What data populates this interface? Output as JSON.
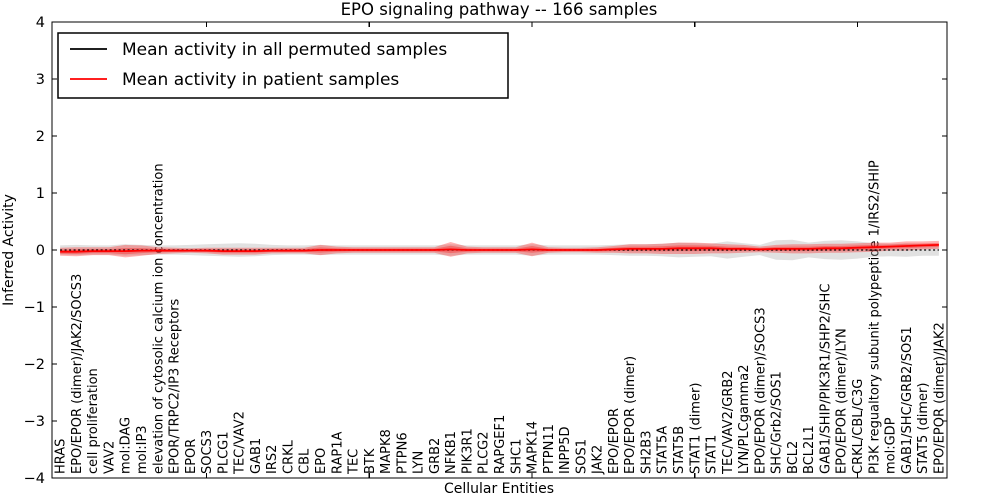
{
  "title": "EPO signaling pathway -- 166 samples",
  "axes": {
    "xlabel": "Cellular Entities",
    "ylabel": "Inferred Activity",
    "ylim": [
      -4,
      4
    ],
    "ytick_values": [
      4,
      3,
      2,
      1,
      0,
      -1,
      -2,
      -3,
      -4
    ],
    "ytick_labels": [
      "4",
      "3",
      "2",
      "1",
      "0",
      "−1",
      "−2",
      "−3",
      "−4"
    ],
    "xtick_major_indices": [
      9,
      19,
      29,
      39,
      49
    ]
  },
  "legend": {
    "items": [
      {
        "label": "Mean activity in all permuted samples",
        "color": "#000000"
      },
      {
        "label": "Mean activity in patient samples",
        "color": "#ff0000"
      }
    ]
  },
  "colors": {
    "background": "#ffffff",
    "spine": "#000000",
    "permuted_line": "#000000",
    "patient_line": "#ff0000",
    "permuted_band": "#aaaaaa",
    "patient_band": "#ff0000"
  },
  "chart_data": {
    "type": "line",
    "title": "EPO signaling pathway -- 166 samples",
    "xlabel": "Cellular Entities",
    "ylabel": "Inferred Activity",
    "ylim": [
      -4,
      4
    ],
    "grid": false,
    "legend_position": "upper left",
    "categories": [
      "HRAS",
      "EPO/EPOR (dimer)/JAK2/SOCS3",
      "cell proliferation",
      "VAV2",
      "mol:DAG",
      "mol:IP3",
      "elevation of cytosolic calcium ion concentration",
      "EPOR/TRPC2/IP3 Receptors",
      "EPOR",
      "SOCS3",
      "PLCG1",
      "TEC/VAV2",
      "GAB1",
      "IRS2",
      "CRKL",
      "CBL",
      "EPO",
      "RAP1A",
      "TEC",
      "BTK",
      "MAPK8",
      "PTPN6",
      "LYN",
      "GRB2",
      "NFKB1",
      "PIK3R1",
      "PLCG2",
      "RAPGEF1",
      "SHC1",
      "MAPK14",
      "PTPN11",
      "INPP5D",
      "SOS1",
      "JAK2",
      "EPO/EPOR",
      "EPO/EPOR (dimer)",
      "SH2B3",
      "STAT5A",
      "STAT5B",
      "STAT1 (dimer)",
      "STAT1",
      "TEC/VAV2/GRB2",
      "LYN/PLCgamma2",
      "EPO/EPOR (dimer)/SOCS3",
      "SHC/Grb2/SOS1",
      "BCL2",
      "BCL2L1",
      "GAB1/SHIP/PIK3R1/SHP2/SHC",
      "EPO/EPOR (dimer)/LYN",
      "CRKL/CBL/C3G",
      "PI3K regualtory subunit polypeptide 1/IRS2/SHIP",
      "mol:GDP",
      "GAB1/SHC/GRB2/SOS1",
      "STAT5 (dimer)",
      "EPO/EPOR (dimer)/JAK2"
    ],
    "series": [
      {
        "name": "Mean activity in all permuted samples",
        "color": "#000000",
        "style": "dotted",
        "values": [
          0,
          0,
          0,
          0,
          0,
          0,
          0,
          0,
          0,
          0,
          0,
          0,
          0,
          0,
          0,
          0,
          0,
          0,
          0,
          0,
          0,
          0,
          0,
          0,
          0,
          0,
          0,
          0,
          0,
          0,
          0,
          0,
          0,
          0,
          0,
          0,
          0,
          0,
          0,
          0,
          0,
          0,
          0,
          0,
          0,
          0,
          0,
          0,
          0,
          0,
          0,
          0,
          0,
          0,
          0
        ]
      },
      {
        "name": "Mean activity in patient samples",
        "color": "#ff0000",
        "style": "solid",
        "values": [
          -0.03,
          -0.03,
          -0.02,
          -0.02,
          -0.02,
          -0.01,
          -0.01,
          -0.01,
          -0.01,
          -0.01,
          -0.02,
          -0.02,
          -0.02,
          -0.01,
          -0.01,
          -0.01,
          0,
          0,
          0,
          0,
          0,
          0,
          0,
          0,
          0.01,
          0,
          0,
          0,
          0,
          0.01,
          0,
          0,
          0,
          0,
          0.01,
          0.02,
          0.02,
          0.02,
          0.03,
          0.03,
          0.03,
          0.02,
          0.02,
          0.01,
          0.02,
          0.02,
          0.02,
          0.03,
          0.03,
          0.04,
          0.05,
          0.06,
          0.07,
          0.08,
          0.09
        ]
      }
    ],
    "bands": [
      {
        "name": "permuted-sample-range",
        "center_series": 0,
        "color": "#aaaaaa",
        "opacity": 0.35,
        "half_widths": [
          0.08,
          0.09,
          0.08,
          0.08,
          0.1,
          0.09,
          0.08,
          0.08,
          0.09,
          0.1,
          0.11,
          0.12,
          0.11,
          0.09,
          0.08,
          0.08,
          0.09,
          0.08,
          0.08,
          0.08,
          0.08,
          0.08,
          0.08,
          0.08,
          0.1,
          0.08,
          0.08,
          0.08,
          0.08,
          0.1,
          0.08,
          0.08,
          0.08,
          0.08,
          0.09,
          0.1,
          0.1,
          0.11,
          0.13,
          0.12,
          0.11,
          0.15,
          0.12,
          0.09,
          0.17,
          0.18,
          0.13,
          0.16,
          0.17,
          0.15,
          0.12,
          0.11,
          0.12,
          0.1,
          0.1
        ]
      },
      {
        "name": "patient-sample-range",
        "center_series": 1,
        "color": "#ff0000",
        "opacity": 0.3,
        "half_widths": [
          0.07,
          0.08,
          0.07,
          0.07,
          0.11,
          0.09,
          0.06,
          0.05,
          0.04,
          0.05,
          0.06,
          0.06,
          0.06,
          0.05,
          0.05,
          0.05,
          0.09,
          0.06,
          0.05,
          0.05,
          0.05,
          0.05,
          0.05,
          0.05,
          0.13,
          0.06,
          0.05,
          0.05,
          0.05,
          0.12,
          0.05,
          0.04,
          0.04,
          0.05,
          0.06,
          0.08,
          0.08,
          0.09,
          0.1,
          0.1,
          0.09,
          0.08,
          0.07,
          0.05,
          0.07,
          0.08,
          0.08,
          0.08,
          0.08,
          0.08,
          0.08,
          0.07,
          0.08,
          0.07,
          0.07
        ]
      }
    ]
  }
}
